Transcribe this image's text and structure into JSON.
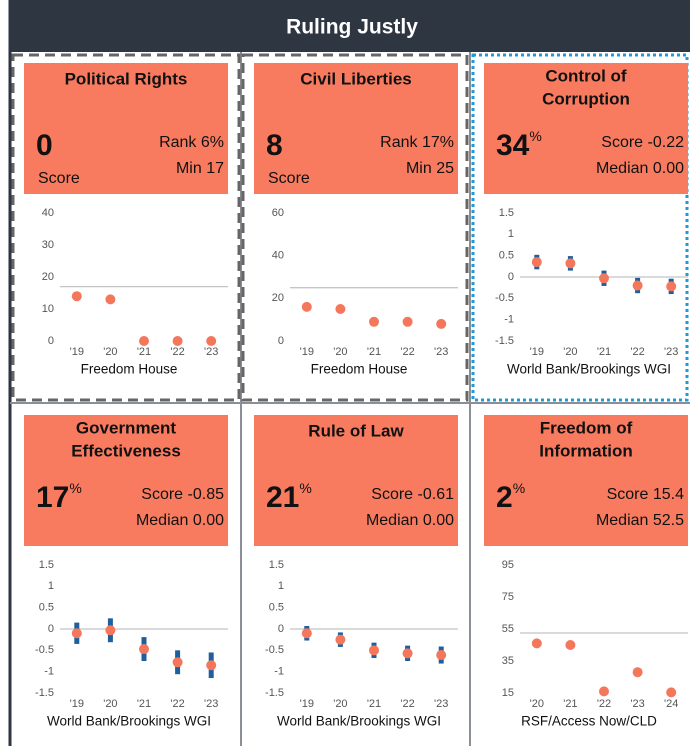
{
  "header": {
    "title": "Ruling Justly"
  },
  "chart_data": [
    {
      "type": "scatter",
      "title_lines": [
        "Political Rights"
      ],
      "big_value": 0,
      "big_caption": "Score",
      "stats": [
        "Rank 6%",
        "Min 17"
      ],
      "threshold": 17,
      "source": "Freedom House",
      "categories": [
        "'19",
        "'20",
        "'21",
        "'22",
        "'23"
      ],
      "values": [
        14,
        13,
        0,
        0,
        0
      ],
      "color": "#f4775c",
      "ylim": [
        0,
        40
      ],
      "yticks": [
        0,
        10,
        20,
        30,
        40
      ]
    },
    {
      "type": "scatter",
      "title_lines": [
        "Civil Liberties"
      ],
      "big_value": 8,
      "big_caption": "Score",
      "stats": [
        "Rank 17%",
        "Min 25"
      ],
      "threshold": 25,
      "source": "Freedom House",
      "categories": [
        "'19",
        "'20",
        "'21",
        "'22",
        "'23"
      ],
      "values": [
        16,
        15,
        9,
        9,
        8
      ],
      "color": "#f4775c",
      "ylim": [
        0,
        60
      ],
      "yticks": [
        0,
        20,
        40,
        60
      ]
    },
    {
      "type": "errorbar",
      "title_lines": [
        "Control of",
        "Corruption"
      ],
      "big_value": 34,
      "big_suffix": "%",
      "stats": [
        "Score -0.22",
        "Median 0.00"
      ],
      "threshold": 0,
      "source": "World Bank/Brookings WGI",
      "categories": [
        "'19",
        "'20",
        "'21",
        "'22",
        "'23"
      ],
      "values": [
        0.35,
        0.32,
        -0.03,
        -0.2,
        -0.22
      ],
      "errors": [
        0.17,
        0.17,
        0.18,
        0.18,
        0.18
      ],
      "color": "#f4775c",
      "error_color": "#1f5f9e",
      "ylim": [
        -1.5,
        1.5
      ],
      "yticks": [
        1.5,
        1,
        0.5,
        0,
        -0.5,
        -1,
        -1.5
      ]
    },
    {
      "type": "errorbar",
      "title_lines": [
        "Government",
        "Effectiveness"
      ],
      "big_value": 17,
      "big_suffix": "%",
      "stats": [
        "Score -0.85",
        "Median 0.00"
      ],
      "threshold": 0,
      "source": "World Bank/Brookings WGI",
      "categories": [
        "'19",
        "'20",
        "'21",
        "'22",
        "'23"
      ],
      "values": [
        -0.1,
        -0.03,
        -0.47,
        -0.78,
        -0.85
      ],
      "errors": [
        0.25,
        0.28,
        0.28,
        0.28,
        0.3
      ],
      "color": "#f4775c",
      "error_color": "#1f5f9e",
      "ylim": [
        -1.5,
        1.5
      ],
      "yticks": [
        1.5,
        1,
        0.5,
        0,
        -0.5,
        -1,
        -1.5
      ]
    },
    {
      "type": "errorbar",
      "title_lines": [
        "Rule of Law"
      ],
      "big_value": 21,
      "big_suffix": "%",
      "stats": [
        "Score -0.61",
        "Median 0.00"
      ],
      "threshold": 0,
      "source": "World Bank/Brookings WGI",
      "categories": [
        "'19",
        "'20",
        "'21",
        "'22",
        "'23"
      ],
      "values": [
        -0.1,
        -0.25,
        -0.5,
        -0.57,
        -0.61
      ],
      "errors": [
        0.17,
        0.17,
        0.18,
        0.18,
        0.2
      ],
      "color": "#f4775c",
      "error_color": "#1f5f9e",
      "ylim": [
        -1.5,
        1.5
      ],
      "yticks": [
        1.5,
        1,
        0.5,
        0,
        -0.5,
        -1,
        -1.5
      ]
    },
    {
      "type": "scatter",
      "title_lines": [
        "Freedom of",
        "Information"
      ],
      "big_value": 2,
      "big_suffix": "%",
      "stats": [
        "Score 15.4",
        "Median 52.5"
      ],
      "threshold": 52.5,
      "source": "RSF/Access Now/CLD",
      "categories": [
        "'20",
        "'21",
        "'22",
        "'23",
        "'24"
      ],
      "values": [
        46,
        45,
        16,
        28,
        15.4
      ],
      "color": "#f4775c",
      "ylim": [
        15,
        95
      ],
      "yticks": [
        95,
        75,
        55,
        35,
        15
      ]
    }
  ]
}
